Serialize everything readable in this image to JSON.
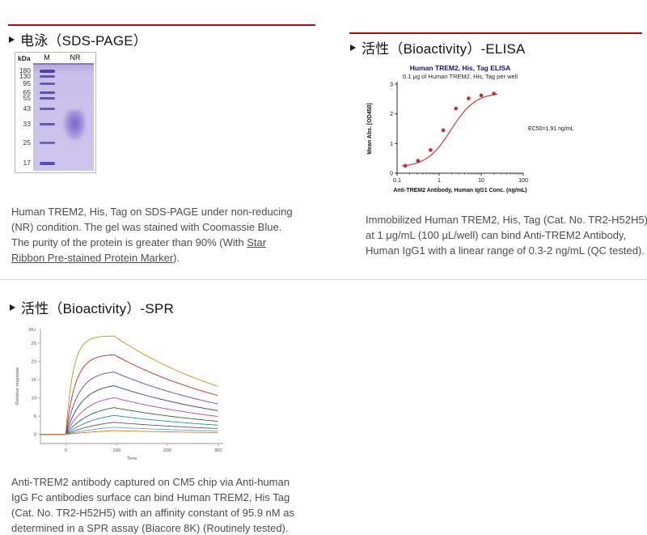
{
  "page": {
    "accent_red": "#b50d0d",
    "text_gray": "#4d4d4d"
  },
  "sections": {
    "sds_page": {
      "title": "电泳（SDS-PAGE）",
      "gel": {
        "unit_label": "kDa",
        "lane_headers": [
          "M",
          "NR"
        ],
        "marker_labels": [
          "180",
          "130",
          "95",
          "65",
          "55",
          "43",
          "33",
          "25",
          "17"
        ]
      },
      "description_part1": "Human TREM2, His, Tag on SDS-PAGE under non-reducing (NR) condition. The gel was stained with Coomassie Blue. The purity of the protein is greater than 90% (With ",
      "description_link": "Star Ribbon Pre-stained Protein Marker",
      "description_part2": ")."
    },
    "elisa": {
      "title": "活性（Bioactivity）-ELISA",
      "description": "Immobilized Human TREM2, His, Tag (Cat. No. TR2-H52H5) at 1 μg/mL (100 μL/well) can bind Anti-TREM2 Antibody, Human IgG1 with a linear range of 0.3-2 ng/mL (QC tested)."
    },
    "spr": {
      "title": "活性（Bioactivity）-SPR",
      "description": "Anti-TREM2 antibody captured on CM5 chip via Anti-human IgG Fc antibodies surface can bind Human TREM2, His Tag (Cat. No. TR2-H52H5) with an affinity constant of 95.9 nM as determined in a SPR assay (Biacore 8K) (Routinely tested)."
    }
  },
  "chart_data": [
    {
      "id": "elisa",
      "type": "scatter",
      "title": "Human TREM2, His, Tag ELISA",
      "subtitle": "0.1 μg of Human TREM2, His, Tag per well",
      "xlabel": "Anti-TREM2 Antibody, Human IgG1 Conc. (ng/mL)",
      "ylabel": "Mean Abs. [OD450]",
      "annotation": "EC50=1.91 ng/mL",
      "x_scale": "log",
      "xlim": [
        0.1,
        100
      ],
      "ylim": [
        0,
        3
      ],
      "x_ticks": [
        0.1,
        1,
        10,
        100
      ],
      "y_ticks": [
        0,
        1,
        2,
        3
      ],
      "x": [
        0.156,
        0.313,
        0.625,
        1.25,
        2.5,
        5,
        10,
        20
      ],
      "y": [
        0.25,
        0.42,
        0.78,
        1.45,
        2.18,
        2.52,
        2.62,
        2.68
      ],
      "fit": {
        "bottom": 0.2,
        "top": 2.72,
        "ec50": 1.91,
        "hill": 1.5
      },
      "color": "#cc2a2a",
      "grid": false
    },
    {
      "id": "spr",
      "type": "line",
      "xlabel": "Time",
      "ylabel": "Relative response",
      "y_unit_label": "RU",
      "xlim": [
        -50,
        310
      ],
      "ylim": [
        -2.5,
        29
      ],
      "x_ticks": [
        0,
        100,
        200,
        300
      ],
      "y_ticks": [
        0,
        5,
        10,
        15,
        20,
        25
      ],
      "association_window": [
        0,
        95
      ],
      "end_time": 300,
      "grid": false,
      "series": [
        {
          "rmax": 27,
          "kobs": 0.07,
          "kd": 0.0035,
          "color": "#b3a118"
        },
        {
          "rmax": 22,
          "kobs": 0.052,
          "kd": 0.0035,
          "color": "#b23222"
        },
        {
          "rmax": 17.5,
          "kobs": 0.04,
          "kd": 0.0035,
          "color": "#7a3fa8"
        },
        {
          "rmax": 14,
          "kobs": 0.032,
          "kd": 0.0035,
          "color": "#2c3f8f"
        },
        {
          "rmax": 11,
          "kobs": 0.026,
          "kd": 0.0035,
          "color": "#c2489d"
        },
        {
          "rmax": 8.5,
          "kobs": 0.021,
          "kd": 0.0035,
          "color": "#2e6b2e"
        },
        {
          "rmax": 6.5,
          "kobs": 0.017,
          "kd": 0.0035,
          "color": "#1f9490"
        },
        {
          "rmax": 4.5,
          "kobs": 0.014,
          "kd": 0.0035,
          "color": "#5a5a5a"
        },
        {
          "rmax": 3,
          "kobs": 0.011,
          "kd": 0.0035,
          "color": "#6f9fd8"
        },
        {
          "rmax": 1.8,
          "kobs": 0.009,
          "kd": 0.0035,
          "color": "#d27f2c"
        }
      ]
    }
  ]
}
